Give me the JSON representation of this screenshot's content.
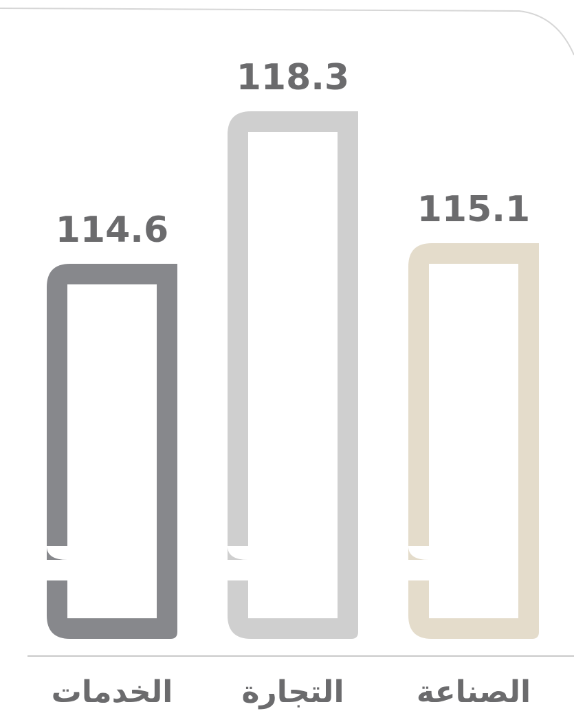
{
  "chart_data": {
    "type": "bar",
    "categories": [
      "الخدمات",
      "التجارة",
      "الصناعة"
    ],
    "values": [
      114.6,
      118.3,
      115.1
    ],
    "value_labels": [
      "114.6",
      "118.3",
      "115.1"
    ],
    "title": "",
    "xlabel": "",
    "ylabel": "",
    "grid": false,
    "legend": "none",
    "colors": [
      "#87888c",
      "#cfcfcf",
      "#e4dccb"
    ],
    "text_color": "#6b6b6d",
    "axis_color": "#c9c9c9",
    "frame_color": "#d6d6d6"
  }
}
